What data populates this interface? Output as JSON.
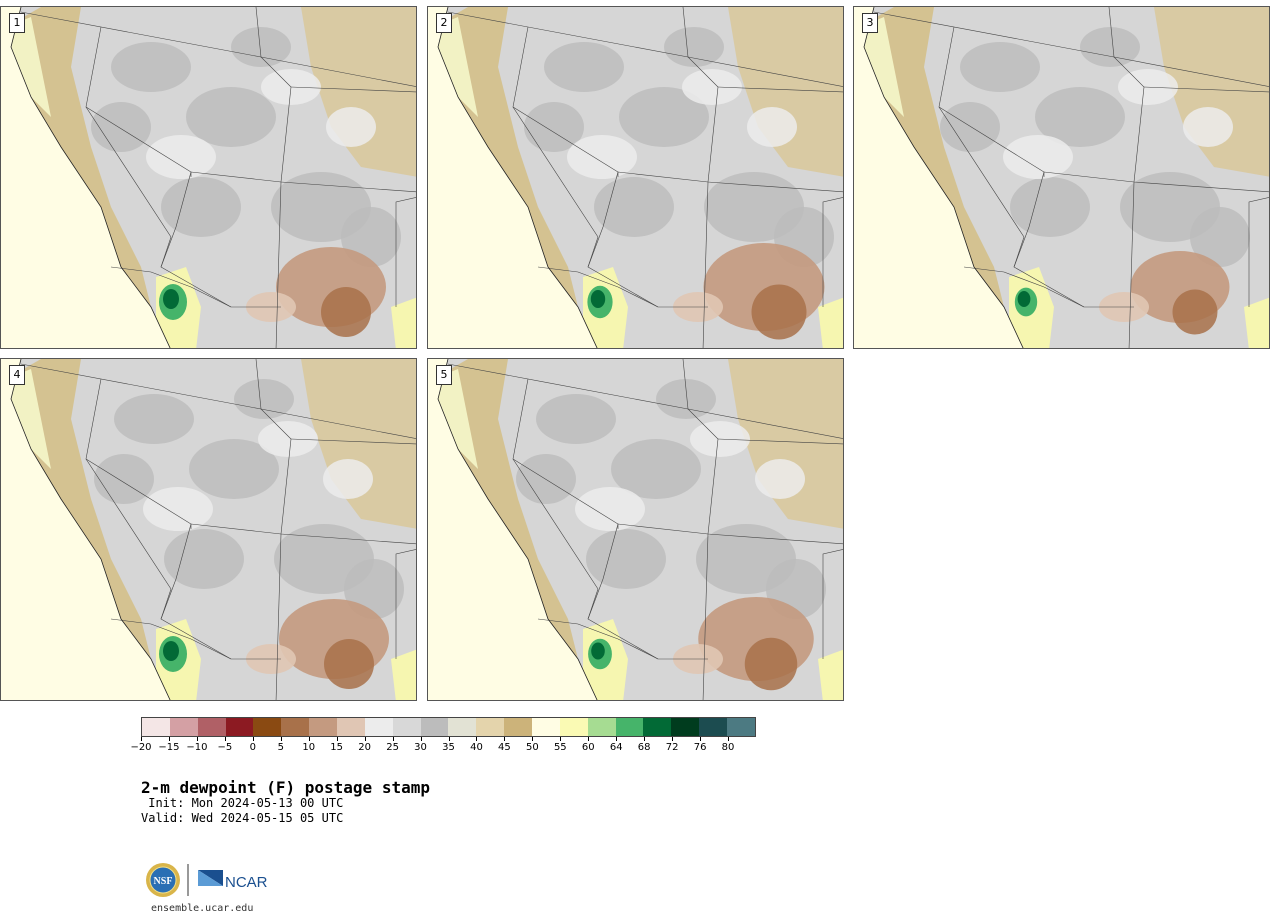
{
  "panels": [
    {
      "label": "1"
    },
    {
      "label": "2"
    },
    {
      "label": "3"
    },
    {
      "label": "4"
    },
    {
      "label": "5"
    }
  ],
  "colorbar": {
    "colors": [
      "#f4e6e6",
      "#d4a0a4",
      "#b06066",
      "#8c1a22",
      "#8a4a12",
      "#a8714a",
      "#c49a80",
      "#e0c6b4",
      "#ececec",
      "#d8d8d8",
      "#bcbcbc",
      "#e2e2d4",
      "#e4d4ac",
      "#ccb37a",
      "#fffde4",
      "#fafab4",
      "#a6dc92",
      "#46b46a",
      "#026a36",
      "#003c1e",
      "#1c4c50",
      "#4c7a82"
    ],
    "tick_labels": [
      "−20",
      "−15",
      "−10",
      "−5",
      "0",
      "5",
      "10",
      "15",
      "20",
      "25",
      "30",
      "35",
      "40",
      "45",
      "50",
      "55",
      "60",
      "64",
      "68",
      "72",
      "76",
      "80"
    ]
  },
  "title": "2-m dewpoint (F) postage stamp",
  "init": " Init: Mon 2024-05-13 00 UTC",
  "valid": "Valid: Wed 2024-05-15 05 UTC",
  "logos": {
    "left": "NSF",
    "right": "NCAR"
  },
  "url": "ensemble.ucar.edu"
}
